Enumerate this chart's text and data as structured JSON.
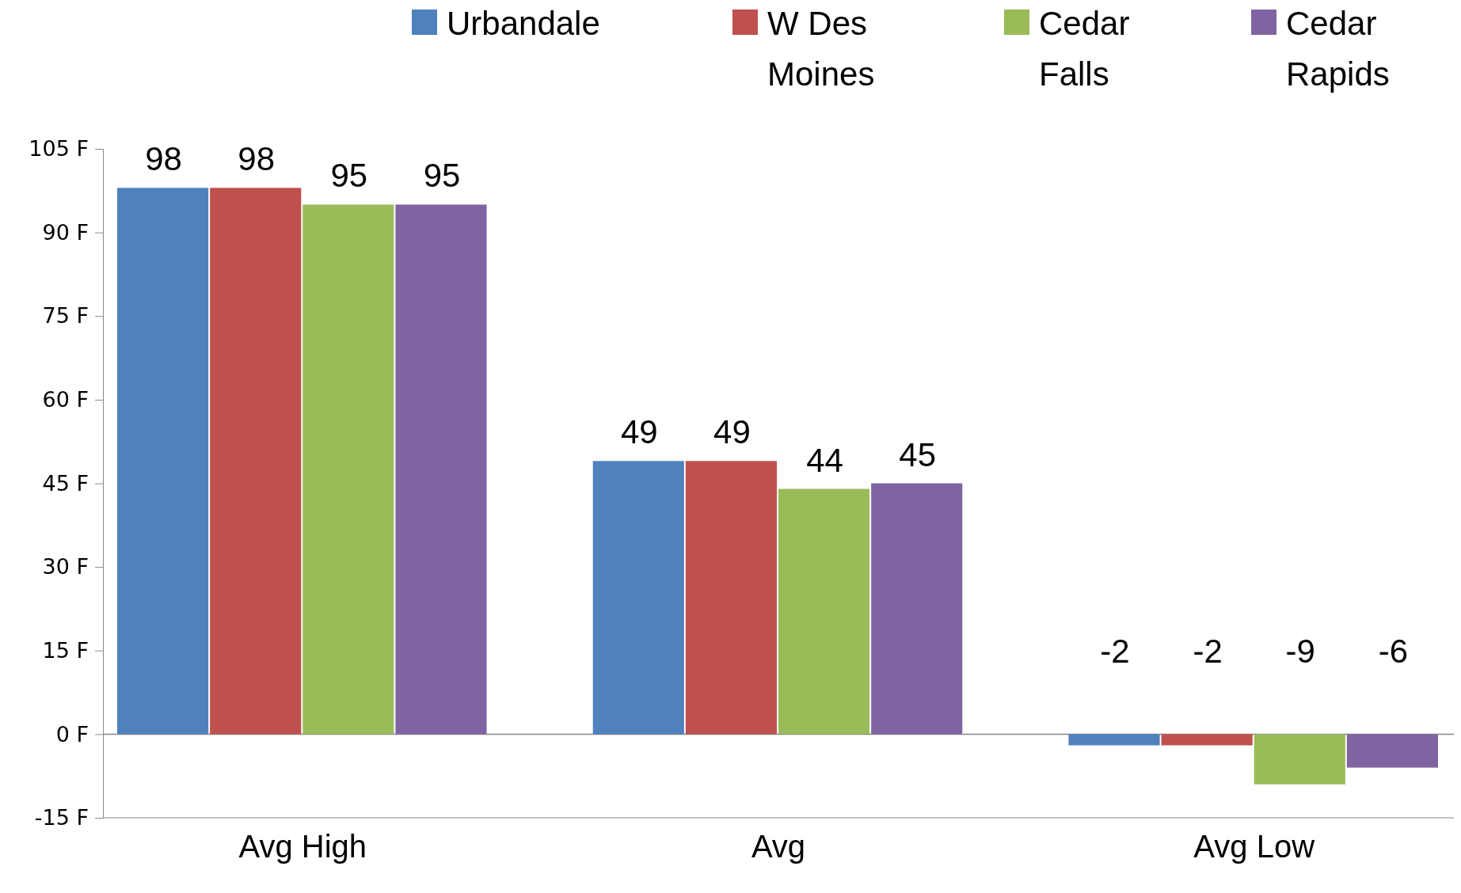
{
  "chart_data": {
    "type": "bar",
    "categories": [
      "Avg High",
      "Avg",
      "Avg Low"
    ],
    "series": [
      {
        "name": "Urbandale",
        "color": "#4f81bd",
        "values": [
          98,
          49,
          -2
        ]
      },
      {
        "name": "W Des Moines",
        "color": "#c0504d",
        "values": [
          98,
          49,
          -2
        ]
      },
      {
        "name": "Cedar Falls",
        "color": "#9bbb59",
        "values": [
          95,
          44,
          -9
        ]
      },
      {
        "name": "Cedar Rapids",
        "color": "#8064a2",
        "values": [
          95,
          45,
          -6
        ]
      }
    ],
    "ylim": [
      -15,
      105
    ],
    "yticks": [
      {
        "value": -15,
        "label": "-15 F"
      },
      {
        "value": 0,
        "label": "0 F"
      },
      {
        "value": 15,
        "label": "15 F"
      },
      {
        "value": 30,
        "label": "30 F"
      },
      {
        "value": 45,
        "label": "45 F"
      },
      {
        "value": 60,
        "label": "60 F"
      },
      {
        "value": 75,
        "label": "75 F"
      },
      {
        "value": 90,
        "label": "90 F"
      },
      {
        "value": 105,
        "label": "105 F"
      }
    ],
    "data_labels": true,
    "legend": "top right"
  }
}
